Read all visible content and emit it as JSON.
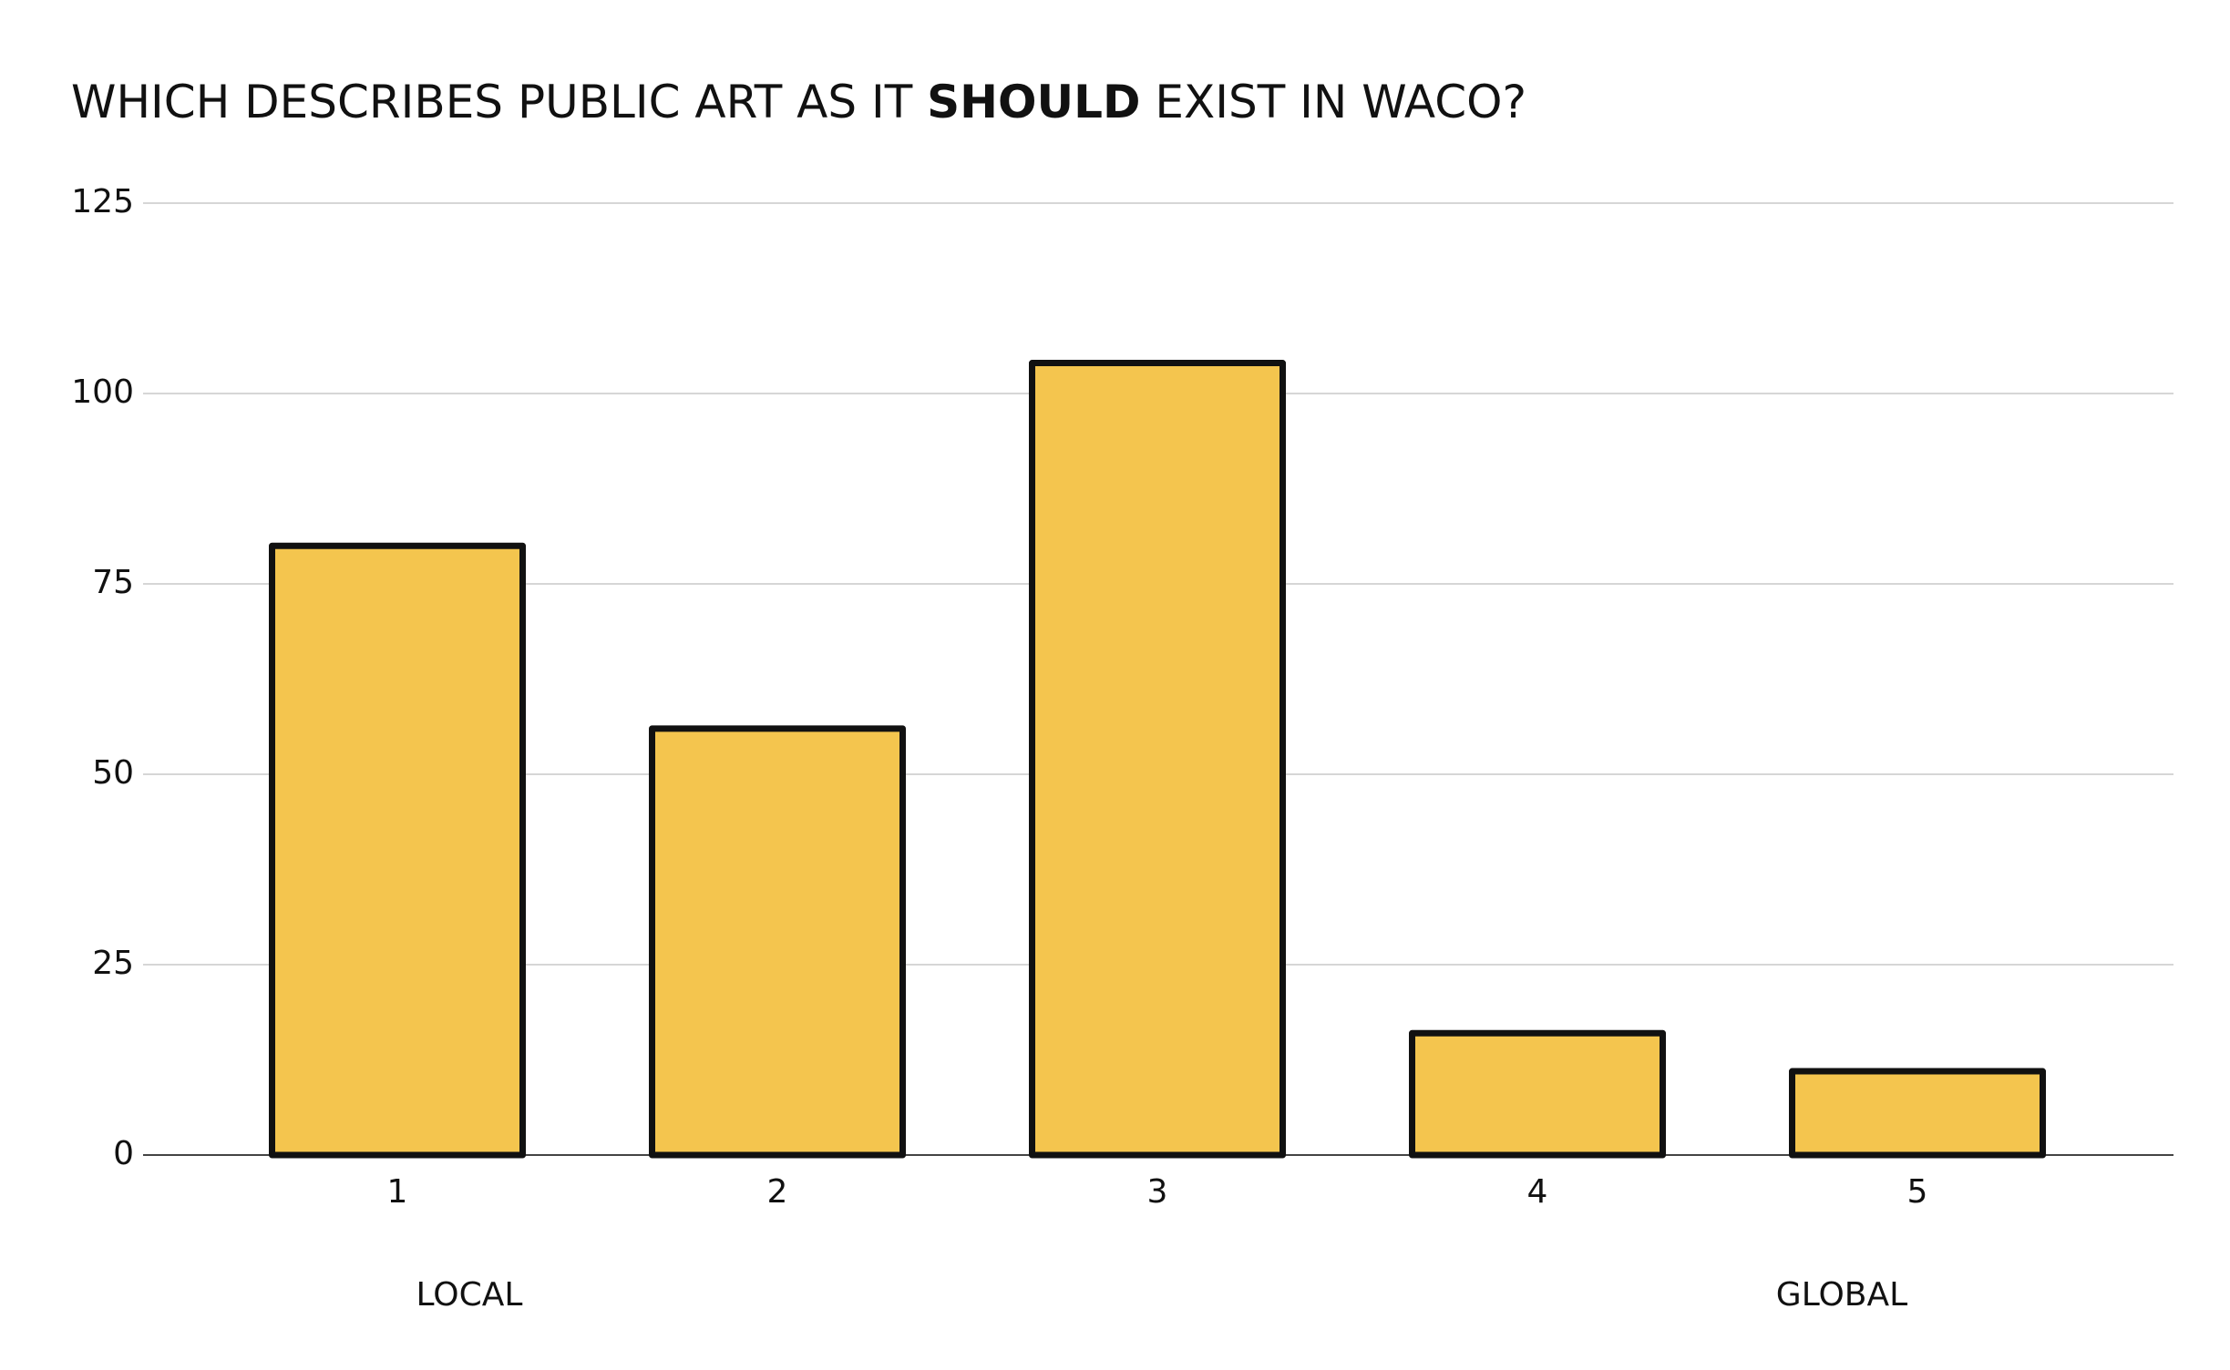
{
  "chart_data": {
    "type": "bar",
    "title": [
      "WHICH DESCRIBES PUBLIC ART AS IT ",
      "SHOULD",
      " EXIST IN WACO?"
    ],
    "categories": [
      "1",
      "2",
      "3",
      "4",
      "5"
    ],
    "values": [
      80,
      56,
      104,
      16,
      11
    ],
    "color": "#f4c54e",
    "ylim": [
      0,
      125
    ],
    "yticks": [
      0,
      25,
      50,
      75,
      100,
      125
    ],
    "grid": true,
    "annotations": [
      "LOCAL",
      "GLOBAL"
    ]
  }
}
